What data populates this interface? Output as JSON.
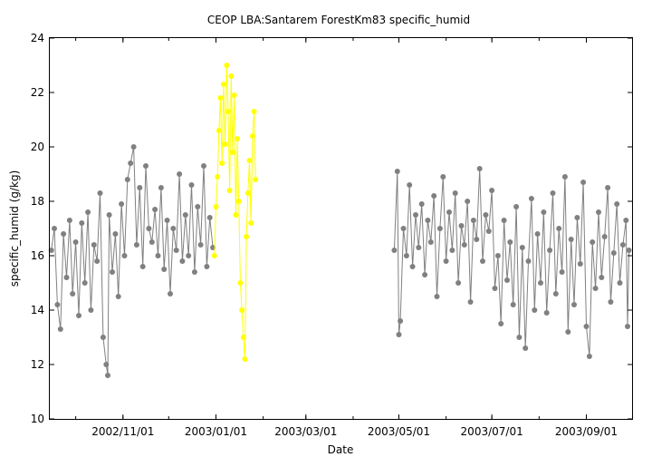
{
  "chart_data": {
    "type": "scatter",
    "title": "CEOP LBA:Santarem ForestKm83  specific_humid",
    "xlabel": "Date",
    "ylabel": "specific_humid (g/kg)",
    "xlim": [
      "2002-09-14",
      "2003-10-01"
    ],
    "ylim": [
      10,
      24
    ],
    "yticks": [
      10,
      12,
      14,
      16,
      18,
      20,
      22,
      24
    ],
    "xticks": [
      "2002/11/01",
      "2003/01/01",
      "2003/03/01",
      "2003/05/01",
      "2003/07/01",
      "2003/09/01"
    ],
    "grid": false,
    "legend": "none",
    "colors": {
      "normal": "#808080",
      "highlight": "#ffff00",
      "axis": "#000000"
    },
    "series": [
      {
        "color": "#808080",
        "points": [
          [
            "2002-09-15",
            16.2
          ],
          [
            "2002-09-17",
            17.0
          ],
          [
            "2002-09-19",
            14.2
          ],
          [
            "2002-09-21",
            13.3
          ],
          [
            "2002-09-23",
            16.8
          ],
          [
            "2002-09-25",
            15.2
          ],
          [
            "2002-09-27",
            17.3
          ],
          [
            "2002-09-29",
            14.6
          ],
          [
            "2002-10-01",
            16.5
          ],
          [
            "2002-10-03",
            13.8
          ],
          [
            "2002-10-05",
            17.2
          ],
          [
            "2002-10-07",
            15.0
          ],
          [
            "2002-10-09",
            17.6
          ],
          [
            "2002-10-11",
            14.0
          ],
          [
            "2002-10-13",
            16.4
          ],
          [
            "2002-10-15",
            15.8
          ],
          [
            "2002-10-17",
            18.3
          ],
          [
            "2002-10-19",
            13.0
          ],
          [
            "2002-10-21",
            12.0
          ],
          [
            "2002-10-22",
            11.6
          ],
          [
            "2002-10-23",
            17.5
          ],
          [
            "2002-10-25",
            15.4
          ],
          [
            "2002-10-27",
            16.8
          ],
          [
            "2002-10-29",
            14.5
          ],
          [
            "2002-10-31",
            17.9
          ],
          [
            "2002-11-02",
            16.0
          ],
          [
            "2002-11-04",
            18.8
          ],
          [
            "2002-11-06",
            19.4
          ],
          [
            "2002-11-08",
            20.0
          ],
          [
            "2002-11-10",
            16.4
          ],
          [
            "2002-11-12",
            18.5
          ],
          [
            "2002-11-14",
            15.6
          ],
          [
            "2002-11-16",
            19.3
          ],
          [
            "2002-11-18",
            17.0
          ],
          [
            "2002-11-20",
            16.5
          ],
          [
            "2002-11-22",
            17.7
          ],
          [
            "2002-11-24",
            16.0
          ],
          [
            "2002-11-26",
            18.5
          ],
          [
            "2002-11-28",
            15.5
          ],
          [
            "2002-11-30",
            17.3
          ],
          [
            "2002-12-02",
            14.6
          ],
          [
            "2002-12-04",
            17.0
          ],
          [
            "2002-12-06",
            16.2
          ],
          [
            "2002-12-08",
            19.0
          ],
          [
            "2002-12-10",
            15.8
          ],
          [
            "2002-12-12",
            17.5
          ],
          [
            "2002-12-14",
            16.0
          ],
          [
            "2002-12-16",
            18.6
          ],
          [
            "2002-12-18",
            15.4
          ],
          [
            "2002-12-20",
            17.8
          ],
          [
            "2002-12-22",
            16.4
          ],
          [
            "2002-12-24",
            19.3
          ],
          [
            "2002-12-26",
            15.6
          ],
          [
            "2002-12-28",
            17.4
          ],
          [
            "2002-12-30",
            16.3
          ],
          [
            "2003-04-28",
            16.2
          ],
          [
            "2003-04-30",
            19.1
          ],
          [
            "2003-05-01",
            13.1
          ],
          [
            "2003-05-02",
            13.6
          ],
          [
            "2003-05-04",
            17.0
          ],
          [
            "2003-05-06",
            16.0
          ],
          [
            "2003-05-08",
            18.6
          ],
          [
            "2003-05-10",
            15.6
          ],
          [
            "2003-05-12",
            17.5
          ],
          [
            "2003-05-14",
            16.3
          ],
          [
            "2003-05-16",
            17.9
          ],
          [
            "2003-05-18",
            15.3
          ],
          [
            "2003-05-20",
            17.3
          ],
          [
            "2003-05-22",
            16.5
          ],
          [
            "2003-05-24",
            18.2
          ],
          [
            "2003-05-26",
            14.5
          ],
          [
            "2003-05-28",
            17.0
          ],
          [
            "2003-05-30",
            18.9
          ],
          [
            "2003-06-01",
            15.8
          ],
          [
            "2003-06-03",
            17.6
          ],
          [
            "2003-06-05",
            16.2
          ],
          [
            "2003-06-07",
            18.3
          ],
          [
            "2003-06-09",
            15.0
          ],
          [
            "2003-06-11",
            17.1
          ],
          [
            "2003-06-13",
            16.4
          ],
          [
            "2003-06-15",
            18.0
          ],
          [
            "2003-06-17",
            14.3
          ],
          [
            "2003-06-19",
            17.3
          ],
          [
            "2003-06-21",
            16.6
          ],
          [
            "2003-06-23",
            19.2
          ],
          [
            "2003-06-25",
            15.8
          ],
          [
            "2003-06-27",
            17.5
          ],
          [
            "2003-06-29",
            16.9
          ],
          [
            "2003-07-01",
            18.4
          ],
          [
            "2003-07-03",
            14.8
          ],
          [
            "2003-07-05",
            16.0
          ],
          [
            "2003-07-07",
            13.5
          ],
          [
            "2003-07-09",
            17.3
          ],
          [
            "2003-07-11",
            15.1
          ],
          [
            "2003-07-13",
            16.5
          ],
          [
            "2003-07-15",
            14.2
          ],
          [
            "2003-07-17",
            17.8
          ],
          [
            "2003-07-19",
            13.0
          ],
          [
            "2003-07-21",
            16.3
          ],
          [
            "2003-07-23",
            12.6
          ],
          [
            "2003-07-25",
            15.8
          ],
          [
            "2003-07-27",
            18.1
          ],
          [
            "2003-07-29",
            14.0
          ],
          [
            "2003-07-31",
            16.8
          ],
          [
            "2003-08-02",
            15.0
          ],
          [
            "2003-08-04",
            17.6
          ],
          [
            "2003-08-06",
            13.9
          ],
          [
            "2003-08-08",
            16.2
          ],
          [
            "2003-08-10",
            18.3
          ],
          [
            "2003-08-12",
            14.6
          ],
          [
            "2003-08-14",
            17.0
          ],
          [
            "2003-08-16",
            15.4
          ],
          [
            "2003-08-18",
            18.9
          ],
          [
            "2003-08-20",
            13.2
          ],
          [
            "2003-08-22",
            16.6
          ],
          [
            "2003-08-24",
            14.2
          ],
          [
            "2003-08-26",
            17.4
          ],
          [
            "2003-08-28",
            15.7
          ],
          [
            "2003-08-30",
            18.7
          ],
          [
            "2003-09-01",
            13.4
          ],
          [
            "2003-09-03",
            12.3
          ],
          [
            "2003-09-05",
            16.5
          ],
          [
            "2003-09-07",
            14.8
          ],
          [
            "2003-09-09",
            17.6
          ],
          [
            "2003-09-11",
            15.2
          ],
          [
            "2003-09-13",
            16.7
          ],
          [
            "2003-09-15",
            18.5
          ],
          [
            "2003-09-17",
            14.3
          ],
          [
            "2003-09-19",
            16.1
          ],
          [
            "2003-09-21",
            17.9
          ],
          [
            "2003-09-23",
            15.0
          ],
          [
            "2003-09-25",
            16.4
          ],
          [
            "2003-09-27",
            17.3
          ],
          [
            "2003-09-28",
            13.4
          ],
          [
            "2003-09-29",
            16.2
          ]
        ]
      },
      {
        "color": "#ffff00",
        "points": [
          [
            "2002-12-31",
            16.0
          ],
          [
            "2003-01-01",
            17.8
          ],
          [
            "2003-01-02",
            18.9
          ],
          [
            "2003-01-03",
            20.6
          ],
          [
            "2003-01-04",
            21.8
          ],
          [
            "2003-01-05",
            19.4
          ],
          [
            "2003-01-06",
            22.3
          ],
          [
            "2003-01-07",
            20.1
          ],
          [
            "2003-01-08",
            23.0
          ],
          [
            "2003-01-09",
            21.3
          ],
          [
            "2003-01-10",
            18.4
          ],
          [
            "2003-01-11",
            22.6
          ],
          [
            "2003-01-12",
            19.8
          ],
          [
            "2003-01-13",
            21.9
          ],
          [
            "2003-01-14",
            17.5
          ],
          [
            "2003-01-15",
            20.3
          ],
          [
            "2003-01-16",
            18.0
          ],
          [
            "2003-01-17",
            15.0
          ],
          [
            "2003-01-18",
            14.0
          ],
          [
            "2003-01-19",
            13.0
          ],
          [
            "2003-01-20",
            12.2
          ],
          [
            "2003-01-21",
            16.7
          ],
          [
            "2003-01-22",
            18.3
          ],
          [
            "2003-01-23",
            19.5
          ],
          [
            "2003-01-24",
            17.2
          ],
          [
            "2003-01-25",
            20.4
          ],
          [
            "2003-01-26",
            21.3
          ],
          [
            "2003-01-27",
            18.8
          ]
        ]
      }
    ]
  }
}
